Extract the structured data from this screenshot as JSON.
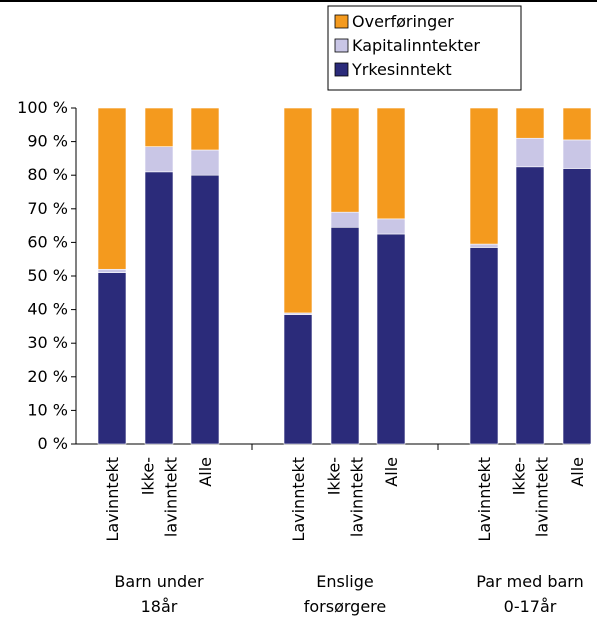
{
  "chart_data": {
    "type": "bar",
    "stacked": true,
    "title": "",
    "xlabel": "",
    "ylabel": "",
    "ylim": [
      0,
      100
    ],
    "ytick_labels": [
      "0 %",
      "10 %",
      "20 %",
      "30 %",
      "40 %",
      "50 %",
      "60 %",
      "70 %",
      "80 %",
      "90 %",
      "100 %"
    ],
    "categories": [
      "Lavinntekt",
      "Ikke-lavinntekt",
      "Alle",
      "Lavinntekt",
      "Ikke-lavinntekt",
      "Alle",
      "Lavinntekt",
      "Ikke-lavinntekt",
      "Alle"
    ],
    "category_lines": [
      [
        "Lavinntekt"
      ],
      [
        "Ikke-",
        "lavinntekt"
      ],
      [
        "Alle"
      ],
      [
        "Lavinntekt"
      ],
      [
        "Ikke-",
        "lavinntekt"
      ],
      [
        "Alle"
      ],
      [
        "Lavinntekt"
      ],
      [
        "Ikke-",
        "lavinntekt"
      ],
      [
        "Alle"
      ]
    ],
    "groups": [
      {
        "label_lines": [
          "Barn under",
          "18år"
        ],
        "members": [
          0,
          1,
          2
        ]
      },
      {
        "label_lines": [
          "Enslige",
          "forsørgere"
        ],
        "members": [
          3,
          4,
          5
        ]
      },
      {
        "label_lines": [
          "Par med barn",
          "0-17år"
        ],
        "members": [
          6,
          7,
          8
        ]
      }
    ],
    "series": [
      {
        "name": "Yrkesinntekt",
        "color": "#2b2b7a",
        "values": [
          51,
          81,
          80,
          38.5,
          64.5,
          62.5,
          58.5,
          82.5,
          82
        ]
      },
      {
        "name": "Kapitalinntekter",
        "color": "#c9c6e6",
        "values": [
          1,
          7.5,
          7.5,
          0.5,
          4.5,
          4.5,
          1,
          8.5,
          8.5
        ]
      },
      {
        "name": "Overføringer",
        "color": "#f49a1e",
        "values": [
          48,
          11.5,
          12.5,
          61,
          31,
          33,
          40.5,
          9,
          9.5
        ]
      }
    ],
    "legend_order": [
      2,
      1,
      0
    ],
    "legend_position": "top-right",
    "grid": false
  }
}
